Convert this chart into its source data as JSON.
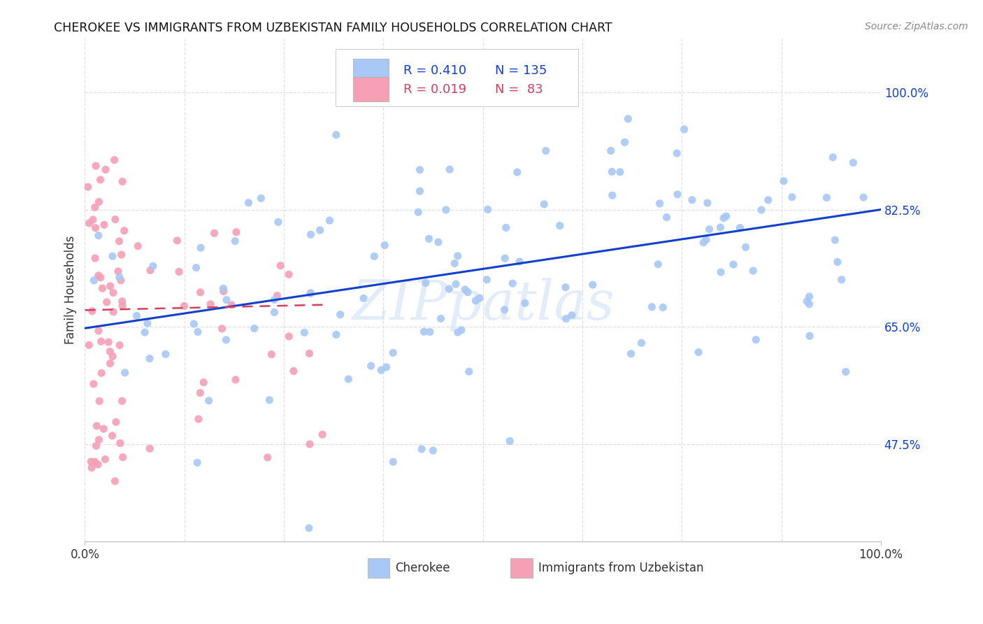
{
  "title": "CHEROKEE VS IMMIGRANTS FROM UZBEKISTAN FAMILY HOUSEHOLDS CORRELATION CHART",
  "source": "Source: ZipAtlas.com",
  "ylabel": "Family Households",
  "ytick_labels": [
    "100.0%",
    "82.5%",
    "65.0%",
    "47.5%"
  ],
  "ytick_values": [
    1.0,
    0.825,
    0.65,
    0.475
  ],
  "watermark": "ZIPpatlas",
  "cherokee_color": "#a8c8f5",
  "uzbek_color": "#f5a0b5",
  "cherokee_line_color": "#1040cc",
  "uzbek_line_color": "#d04060",
  "background_color": "#ffffff",
  "grid_color": "#e0e0e0",
  "ytick_color": "#1040cc",
  "title_color": "#111111",
  "source_color": "#888888",
  "legend_R1": "R = 0.410",
  "legend_N1": "N = 135",
  "legend_R2": "R = 0.019",
  "legend_N2": "N =  83",
  "xlim": [
    0.0,
    1.0
  ],
  "ylim": [
    0.33,
    1.08
  ]
}
